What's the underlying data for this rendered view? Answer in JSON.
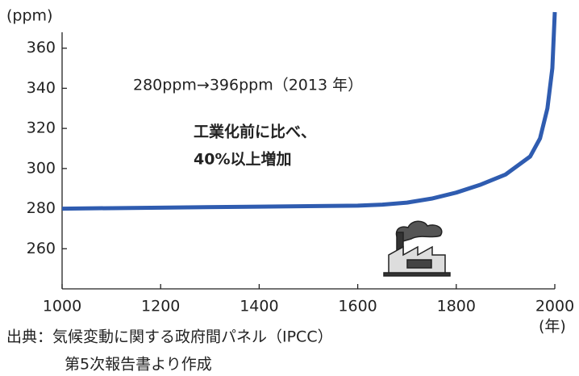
{
  "chart_data": {
    "type": "line",
    "y_label": "(ppm)",
    "x_label": "(年)",
    "annotations": [
      "280ppm→396ppm（2013 年）",
      "工業化前に比べ、",
      "40%以上増加"
    ],
    "source": [
      "出典：気候変動に関する政府間パネル（IPCC）",
      "第5次報告書より作成"
    ],
    "x": [
      1000,
      1200,
      1400,
      1600,
      1650,
      1700,
      1750,
      1800,
      1850,
      1900,
      1950,
      1970,
      1985,
      1995,
      2000
    ],
    "series": [
      {
        "color": "#2f5cb0",
        "values": [
          280,
          280.5,
          281,
          281.5,
          282,
          283,
          285,
          288,
          292,
          297,
          306,
          315,
          330,
          350,
          378
        ]
      }
    ],
    "xlim": [
      1000,
      2000
    ],
    "xticks": [
      1000,
      1200,
      1400,
      1600,
      1800,
      2000
    ],
    "ylim": [
      240,
      380
    ],
    "yticks": [
      260,
      280,
      300,
      320,
      340,
      360
    ]
  }
}
